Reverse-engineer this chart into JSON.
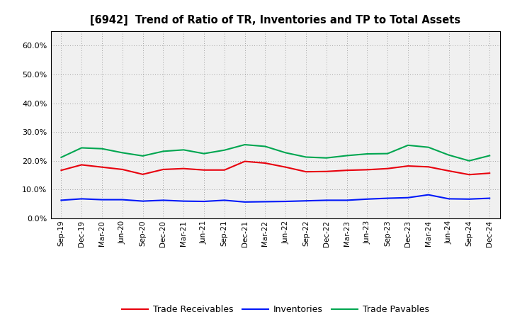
{
  "title": "[6942]  Trend of Ratio of TR, Inventories and TP to Total Assets",
  "x_labels": [
    "Sep-19",
    "Dec-19",
    "Mar-20",
    "Jun-20",
    "Sep-20",
    "Dec-20",
    "Mar-21",
    "Jun-21",
    "Sep-21",
    "Dec-21",
    "Mar-22",
    "Jun-22",
    "Sep-22",
    "Dec-22",
    "Mar-23",
    "Jun-23",
    "Sep-23",
    "Dec-23",
    "Mar-24",
    "Jun-24",
    "Sep-24",
    "Dec-24"
  ],
  "trade_receivables": [
    0.167,
    0.186,
    0.178,
    0.17,
    0.153,
    0.17,
    0.173,
    0.168,
    0.168,
    0.198,
    0.192,
    0.178,
    0.162,
    0.163,
    0.167,
    0.169,
    0.173,
    0.182,
    0.179,
    0.165,
    0.152,
    0.157
  ],
  "inventories": [
    0.063,
    0.068,
    0.065,
    0.065,
    0.06,
    0.063,
    0.06,
    0.059,
    0.063,
    0.057,
    0.058,
    0.059,
    0.061,
    0.063,
    0.063,
    0.067,
    0.07,
    0.072,
    0.082,
    0.068,
    0.067,
    0.07
  ],
  "trade_payables": [
    0.212,
    0.245,
    0.242,
    0.228,
    0.217,
    0.233,
    0.238,
    0.225,
    0.237,
    0.256,
    0.25,
    0.228,
    0.213,
    0.21,
    0.218,
    0.224,
    0.225,
    0.254,
    0.247,
    0.22,
    0.2,
    0.218
  ],
  "ylim": [
    0.0,
    0.65
  ],
  "yticks": [
    0.0,
    0.1,
    0.2,
    0.3,
    0.4,
    0.5,
    0.6
  ],
  "color_tr": "#e8000d",
  "color_inv": "#0018f9",
  "color_tp": "#00a650",
  "legend_labels": [
    "Trade Receivables",
    "Inventories",
    "Trade Payables"
  ],
  "background_color": "#ffffff",
  "plot_bg_color": "#f0f0f0",
  "grid_color": "#888888"
}
